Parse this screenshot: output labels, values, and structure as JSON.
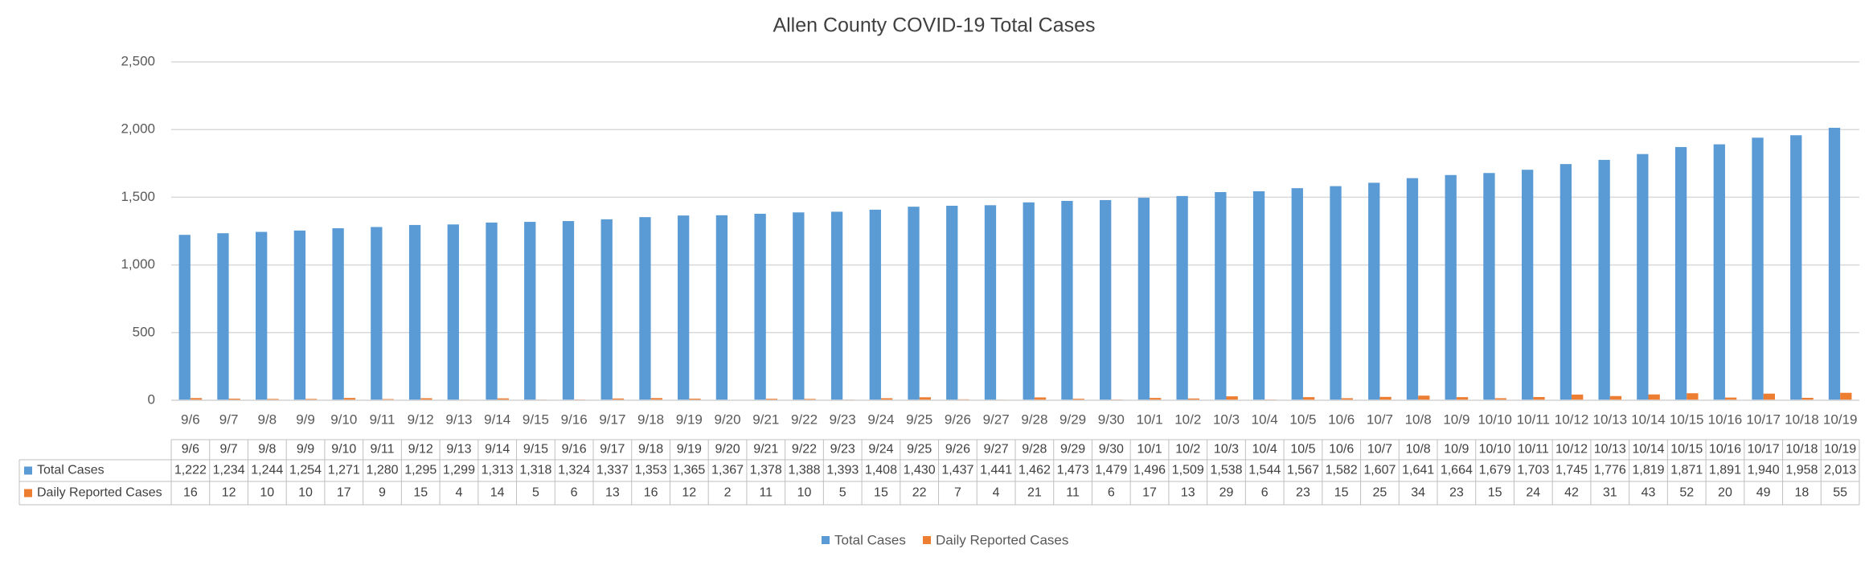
{
  "chart_data": {
    "type": "bar",
    "title": "Allen County COVID-19 Total Cases",
    "categories": [
      "9/6",
      "9/7",
      "9/8",
      "9/9",
      "9/10",
      "9/11",
      "9/12",
      "9/13",
      "9/14",
      "9/15",
      "9/16",
      "9/17",
      "9/18",
      "9/19",
      "9/20",
      "9/21",
      "9/22",
      "9/23",
      "9/24",
      "9/25",
      "9/26",
      "9/27",
      "9/28",
      "9/29",
      "9/30",
      "10/1",
      "10/2",
      "10/3",
      "10/4",
      "10/5",
      "10/6",
      "10/7",
      "10/8",
      "10/9",
      "10/10",
      "10/11",
      "10/12",
      "10/13",
      "10/14",
      "10/15",
      "10/16",
      "10/17",
      "10/18",
      "10/19"
    ],
    "series": [
      {
        "name": "Total Cases",
        "color": "#5b9bd5",
        "values": [
          1222,
          1234,
          1244,
          1254,
          1271,
          1280,
          1295,
          1299,
          1313,
          1318,
          1324,
          1337,
          1353,
          1365,
          1367,
          1378,
          1388,
          1393,
          1408,
          1430,
          1437,
          1441,
          1462,
          1473,
          1479,
          1496,
          1509,
          1538,
          1544,
          1567,
          1582,
          1607,
          1641,
          1664,
          1679,
          1703,
          1745,
          1776,
          1819,
          1871,
          1891,
          1940,
          1958,
          2013
        ],
        "value_labels": [
          "1,222",
          "1,234",
          "1,244",
          "1,254",
          "1,271",
          "1,280",
          "1,295",
          "1,299",
          "1,313",
          "1,318",
          "1,324",
          "1,337",
          "1,353",
          "1,365",
          "1,367",
          "1,378",
          "1,388",
          "1,393",
          "1,408",
          "1,430",
          "1,437",
          "1,441",
          "1,462",
          "1,473",
          "1,479",
          "1,496",
          "1,509",
          "1,538",
          "1,544",
          "1,567",
          "1,582",
          "1,607",
          "1,641",
          "1,664",
          "1,679",
          "1,703",
          "1,745",
          "1,776",
          "1,819",
          "1,871",
          "1,891",
          "1,940",
          "1,958",
          "2,013"
        ]
      },
      {
        "name": "Daily Reported Cases",
        "color": "#ed7d31",
        "values": [
          16,
          12,
          10,
          10,
          17,
          9,
          15,
          4,
          14,
          5,
          6,
          13,
          16,
          12,
          2,
          11,
          10,
          5,
          15,
          22,
          7,
          4,
          21,
          11,
          6,
          17,
          13,
          29,
          6,
          23,
          15,
          25,
          34,
          23,
          15,
          24,
          42,
          31,
          43,
          52,
          20,
          49,
          18,
          55
        ]
      }
    ],
    "ylim": [
      0,
      2500
    ],
    "yticks": [
      0,
      {
        "value": 500,
        "label": "500"
      },
      {
        "value": 1000,
        "label": "1,000"
      },
      {
        "value": 1500,
        "label": "1,500"
      },
      {
        "value": 2000,
        "label": "2,000"
      },
      {
        "value": 2500,
        "label": "2,500"
      }
    ],
    "grid": true,
    "legend": "bottom"
  }
}
